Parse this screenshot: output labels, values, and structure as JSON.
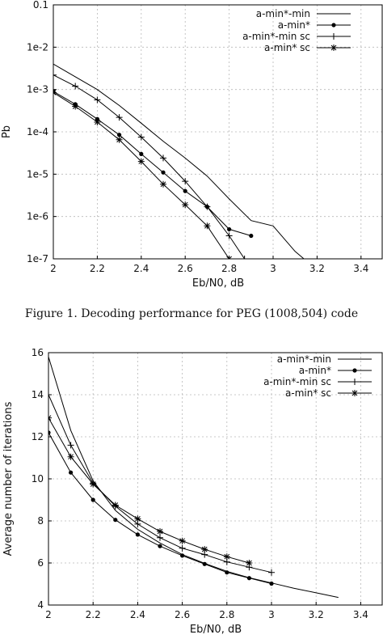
{
  "figure1": {
    "caption": "Figure 1.   Decoding performance for PEG (1008,504) code"
  },
  "chart_data": [
    {
      "type": "line",
      "xlabel": "Eb/N0, dB",
      "ylabel": "Pb",
      "xlim": [
        2,
        3.5
      ],
      "ylim": [
        1e-07,
        0.1
      ],
      "yscale": "log",
      "grid": true,
      "legend_position": "top-right",
      "xticks": [
        "2",
        "2.2",
        "2.4",
        "2.6",
        "2.8",
        "3",
        "3.2",
        "3.4"
      ],
      "yticks": [
        "0.1",
        "1e-2",
        "1e-3",
        "1e-4",
        "1e-5",
        "1e-6",
        "1e-7"
      ],
      "series": [
        {
          "name": "a-min*-min",
          "marker": "none",
          "x": [
            2,
            2.1,
            2.2,
            2.3,
            2.4,
            2.5,
            2.6,
            2.7,
            2.8,
            2.9,
            3.0,
            3.1,
            3.14
          ],
          "y": [
            0.004,
            0.002,
            0.001,
            0.00042,
            0.00016,
            6e-05,
            2.4e-05,
            9e-06,
            2.6e-06,
            8e-07,
            6e-07,
            1.5e-07,
            1e-07
          ]
        },
        {
          "name": "a-min*",
          "marker": "filled-circle",
          "x": [
            2,
            2.1,
            2.2,
            2.3,
            2.4,
            2.5,
            2.6,
            2.7,
            2.8,
            2.9
          ],
          "y": [
            0.0009,
            0.00045,
            0.0002,
            8.5e-05,
            3e-05,
            1.1e-05,
            4e-06,
            1.7e-06,
            5e-07,
            3.5e-07
          ]
        },
        {
          "name": "a-min*-min sc",
          "marker": "plus",
          "x": [
            2,
            2.1,
            2.2,
            2.3,
            2.4,
            2.5,
            2.6,
            2.7,
            2.8,
            2.87
          ],
          "y": [
            0.0022,
            0.0012,
            0.00057,
            0.00022,
            7.5e-05,
            2.4e-05,
            6.8e-06,
            1.7e-06,
            3.5e-07,
            1e-07
          ]
        },
        {
          "name": "a-min* sc",
          "marker": "asterisk",
          "x": [
            2,
            2.1,
            2.2,
            2.3,
            2.4,
            2.5,
            2.6,
            2.7,
            2.8
          ],
          "y": [
            0.00085,
            0.0004,
            0.00017,
            6.5e-05,
            2e-05,
            5.8e-06,
            1.9e-06,
            6e-07,
            1e-07
          ]
        }
      ]
    },
    {
      "type": "line",
      "xlabel": "Eb/N0, dB",
      "ylabel": "Average number of iterations",
      "xlim": [
        2,
        3.5
      ],
      "ylim": [
        4,
        16
      ],
      "grid": true,
      "legend_position": "top-right",
      "xticks": [
        "2",
        "2.2",
        "2.4",
        "2.6",
        "2.8",
        "3",
        "3.2",
        "3.4"
      ],
      "yticks": [
        "4",
        "6",
        "8",
        "10",
        "12",
        "14",
        "16"
      ],
      "series": [
        {
          "name": "a-min*-min",
          "marker": "none",
          "x": [
            2,
            2.1,
            2.2,
            2.3,
            2.4,
            2.5,
            2.6,
            2.7,
            2.8,
            2.9,
            3.0,
            3.1,
            3.2,
            3.3
          ],
          "y": [
            15.8,
            12.3,
            9.9,
            8.5,
            7.6,
            6.95,
            6.4,
            5.98,
            5.6,
            5.3,
            5.05,
            4.8,
            4.58,
            4.36
          ]
        },
        {
          "name": "a-min*",
          "marker": "filled-circle",
          "x": [
            2,
            2.1,
            2.2,
            2.3,
            2.4,
            2.5,
            2.6,
            2.7,
            2.8,
            2.9,
            3.0
          ],
          "y": [
            12.2,
            10.3,
            9.0,
            8.05,
            7.35,
            6.8,
            6.35,
            5.95,
            5.55,
            5.28,
            5.02
          ]
        },
        {
          "name": "a-min*-min sc",
          "marker": "plus",
          "x": [
            2,
            2.1,
            2.2,
            2.3,
            2.4,
            2.5,
            2.6,
            2.7,
            2.8,
            2.9,
            3.0
          ],
          "y": [
            14.0,
            11.6,
            9.8,
            8.7,
            7.85,
            7.2,
            6.7,
            6.4,
            6.05,
            5.8,
            5.55
          ]
        },
        {
          "name": "a-min* sc",
          "marker": "asterisk",
          "x": [
            2,
            2.1,
            2.2,
            2.3,
            2.4,
            2.5,
            2.6,
            2.7,
            2.8,
            2.9
          ],
          "y": [
            12.9,
            11.05,
            9.75,
            8.75,
            8.1,
            7.5,
            7.05,
            6.65,
            6.3,
            6.0
          ]
        }
      ]
    }
  ]
}
